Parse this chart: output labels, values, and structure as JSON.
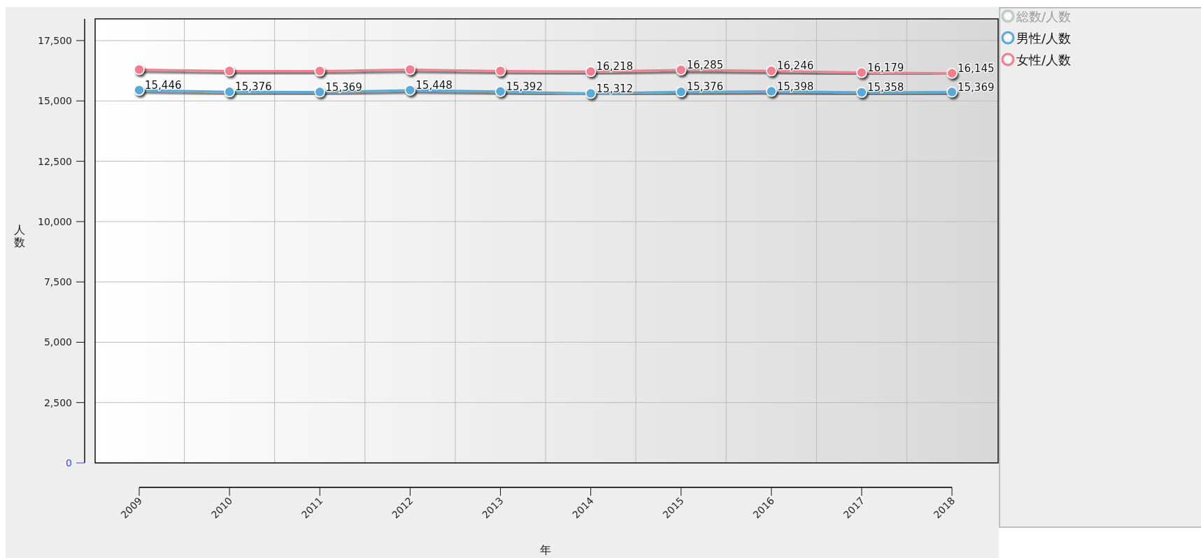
{
  "chart_data": {
    "type": "line",
    "xlabel": "年",
    "ylabel": "人数",
    "categories": [
      "2009",
      "2010",
      "2011",
      "2012",
      "2013",
      "2014",
      "2015",
      "2016",
      "2017",
      "2018"
    ],
    "series": [
      {
        "name": "総数/人数",
        "color": "#c0c8c0",
        "values": [
          null,
          null,
          null,
          null,
          null,
          null,
          null,
          null,
          null,
          null
        ]
      },
      {
        "name": "男性/人数",
        "color": "#5aaad8",
        "values": [
          15446,
          15376,
          15369,
          15448,
          15392,
          15312,
          15376,
          15398,
          15358,
          15369
        ],
        "value_labels": [
          "15,446",
          "15,376",
          "15,369",
          "15,448",
          "15,392",
          "15,312",
          "15,376",
          "15,398",
          "15,358",
          "15,369"
        ]
      },
      {
        "name": "女性/人数",
        "color": "#f08090",
        "values": [
          16300,
          16240,
          16240,
          16300,
          16240,
          16218,
          16285,
          16246,
          16179,
          16145
        ],
        "value_labels": [
          null,
          null,
          null,
          null,
          null,
          "16,218",
          "16,285",
          "16,246",
          "16,179",
          "16,145"
        ]
      }
    ],
    "ylim": [
      0,
      18400
    ],
    "yticks": [
      {
        "value": 0,
        "label": "0"
      },
      {
        "value": 2500,
        "label": "2,500"
      },
      {
        "value": 5000,
        "label": "5,000"
      },
      {
        "value": 7500,
        "label": "7,500"
      },
      {
        "value": 10000,
        "label": "10,000"
      },
      {
        "value": 12500,
        "label": "12,500"
      },
      {
        "value": 15000,
        "label": "15,000"
      },
      {
        "value": 17500,
        "label": "17,500"
      }
    ],
    "grid": true,
    "legend": "right",
    "marker": "circle",
    "line_style": "solid"
  }
}
